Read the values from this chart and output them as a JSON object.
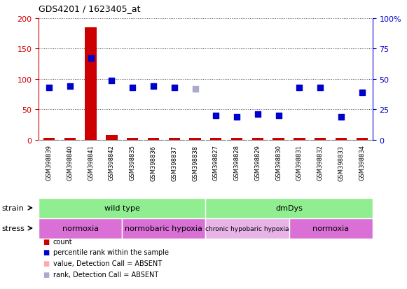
{
  "title": "GDS4201 / 1623405_at",
  "samples": [
    "GSM398839",
    "GSM398840",
    "GSM398841",
    "GSM398842",
    "GSM398835",
    "GSM398836",
    "GSM398837",
    "GSM398838",
    "GSM398827",
    "GSM398828",
    "GSM398829",
    "GSM398830",
    "GSM398831",
    "GSM398832",
    "GSM398833",
    "GSM398834"
  ],
  "count_values": [
    3,
    3,
    185,
    8,
    3,
    3,
    3,
    3,
    3,
    3,
    3,
    3,
    3,
    3,
    3,
    3
  ],
  "count_absent": [
    false,
    false,
    false,
    false,
    false,
    false,
    false,
    false,
    false,
    false,
    false,
    false,
    false,
    false,
    false,
    false
  ],
  "percentile_values": [
    43,
    44,
    67,
    49,
    43,
    44,
    43,
    42,
    20,
    19,
    21,
    20,
    43,
    43,
    19,
    39
  ],
  "percentile_absent": [
    false,
    false,
    false,
    false,
    false,
    false,
    false,
    true,
    false,
    false,
    false,
    false,
    false,
    false,
    false,
    false
  ],
  "strain_groups": [
    {
      "label": "wild type",
      "start": 0,
      "end": 8,
      "color": "#90ee90"
    },
    {
      "label": "dmDys",
      "start": 8,
      "end": 16,
      "color": "#90ee90"
    }
  ],
  "stress_groups": [
    {
      "label": "normoxia",
      "start": 0,
      "end": 4,
      "color": "#da70d6"
    },
    {
      "label": "normobaric hypoxia",
      "start": 4,
      "end": 8,
      "color": "#da70d6"
    },
    {
      "label": "chronic hypobaric hypoxia",
      "start": 8,
      "end": 12,
      "color": "#e8b4e8"
    },
    {
      "label": "normoxia",
      "start": 12,
      "end": 16,
      "color": "#da70d6"
    }
  ],
  "ylim_left": [
    0,
    200
  ],
  "ylim_right": [
    0,
    100
  ],
  "yticks_left": [
    0,
    50,
    100,
    150,
    200
  ],
  "yticks_right": [
    0,
    25,
    50,
    75,
    100
  ],
  "ytick_labels_right": [
    "0",
    "25",
    "50",
    "75",
    "100%"
  ],
  "left_axis_color": "#cc0000",
  "right_axis_color": "#0000cc",
  "count_color": "#cc0000",
  "count_absent_color": "#ffaaaa",
  "percentile_color": "#0000cc",
  "percentile_absent_color": "#aaaacc",
  "dot_size": 28,
  "background_color": "#ffffff",
  "plot_bg_color": "#ffffff",
  "grid_color": "#555555",
  "sample_bg_color": "#c8c8c8",
  "sample_divider_color": "#ffffff"
}
